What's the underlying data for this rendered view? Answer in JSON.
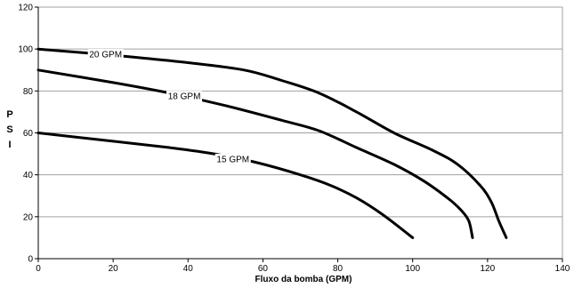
{
  "chart_data": {
    "type": "line",
    "title": "",
    "xlabel": "Fluxo da bomba (GPM)",
    "ylabel": "PSI",
    "xlim": [
      0,
      140
    ],
    "ylim": [
      0,
      120
    ],
    "x_ticks": [
      "0",
      "20",
      "40",
      "60",
      "80",
      "100",
      "120",
      "140"
    ],
    "y_ticks": [
      "0",
      "20",
      "40",
      "60",
      "80",
      "100",
      "120"
    ],
    "grid": "horizontal",
    "legend": "none",
    "line_color": "#000000",
    "grid_color": "#a0a0a0",
    "series": [
      {
        "name": "20 GPM",
        "label_at": [
          18,
          97.5
        ],
        "points": [
          [
            0,
            100
          ],
          [
            20,
            97
          ],
          [
            40,
            93.5
          ],
          [
            55,
            90
          ],
          [
            65,
            85
          ],
          [
            75,
            79
          ],
          [
            85,
            70
          ],
          [
            95,
            60
          ],
          [
            105,
            52
          ],
          [
            112,
            45
          ],
          [
            118,
            35
          ],
          [
            121,
            27
          ],
          [
            123,
            18
          ],
          [
            125,
            10
          ]
        ]
      },
      {
        "name": "18 GPM",
        "label_at": [
          39,
          77.5
        ],
        "points": [
          [
            0,
            90
          ],
          [
            20,
            84
          ],
          [
            35,
            79
          ],
          [
            50,
            73
          ],
          [
            65,
            66
          ],
          [
            75,
            61
          ],
          [
            85,
            53
          ],
          [
            95,
            45
          ],
          [
            103,
            37
          ],
          [
            110,
            28
          ],
          [
            113,
            23
          ],
          [
            115,
            18
          ],
          [
            116,
            10
          ]
        ]
      },
      {
        "name": "15 GPM",
        "label_at": [
          52,
          47.5
        ],
        "points": [
          [
            0,
            60
          ],
          [
            20,
            56
          ],
          [
            35,
            53
          ],
          [
            47,
            50
          ],
          [
            58,
            46
          ],
          [
            70,
            40
          ],
          [
            78,
            35
          ],
          [
            85,
            29
          ],
          [
            92,
            21
          ],
          [
            100,
            10
          ]
        ]
      }
    ]
  }
}
